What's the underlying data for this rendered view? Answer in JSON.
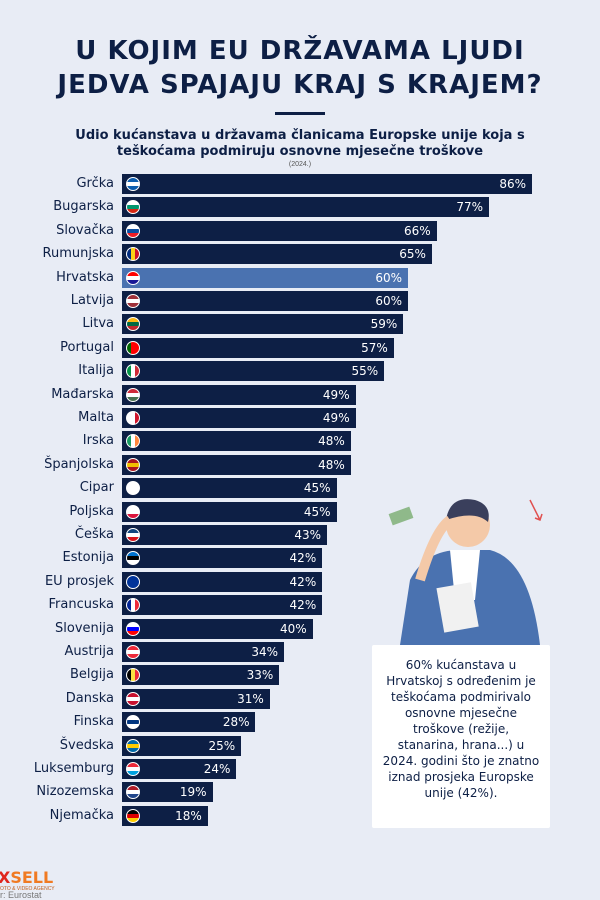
{
  "header": {
    "title_line1": "U KOJIM EU DRŽAVAMA LJUDI",
    "title_line2": "JEDVA SPAJAJU KRAJ S KRAJEM?",
    "subtitle": "Udio kućanstava u državama članicama Europske unije koja s teškoćama podmiruju osnovne mjesečne troškove",
    "year": "(2024.)"
  },
  "chart_data": {
    "type": "bar",
    "orientation": "horizontal",
    "title": "Udio kućanstava u državama članicama Europske unije koja s teškoćama podmiruju osnovne mjesečne troškove",
    "xlim": [
      0,
      100
    ],
    "unit": "%",
    "highlight": "Hrvatska",
    "bar_color": "#0d1f45",
    "highlight_color": "#4a72b0",
    "categories": [
      "Grčka",
      "Bugarska",
      "Slovačka",
      "Rumunjska",
      "Hrvatska",
      "Latvija",
      "Litva",
      "Portugal",
      "Italija",
      "Mađarska",
      "Malta",
      "Irska",
      "Španjolska",
      "Cipar",
      "Poljska",
      "Češka",
      "Estonija",
      "EU prosjek",
      "Francuska",
      "Slovenija",
      "Austrija",
      "Belgija",
      "Danska",
      "Finska",
      "Švedska",
      "Luksemburg",
      "Nizozemska",
      "Njemačka"
    ],
    "values": [
      86,
      77,
      66,
      65,
      60,
      60,
      59,
      57,
      55,
      49,
      49,
      48,
      48,
      45,
      45,
      43,
      42,
      42,
      42,
      40,
      34,
      33,
      31,
      28,
      25,
      24,
      19,
      18
    ],
    "labels": [
      "86%",
      "77%",
      "66%",
      "65%",
      "60%",
      "60%",
      "59%",
      "57%",
      "55%",
      "49%",
      "49%",
      "48%",
      "48%",
      "45%",
      "45%",
      "43%",
      "42%",
      "42%",
      "42%",
      "40%",
      "34%",
      "33%",
      "31%",
      "28%",
      "25%",
      "24%",
      "19%",
      "18%"
    ]
  },
  "flags": [
    [
      "#0d5eaf",
      "#fff",
      "#0d5eaf"
    ],
    [
      "#fff",
      "#00966e",
      "#d62612"
    ],
    [
      "#fff",
      "#0b4ea2",
      "#ee1c25"
    ],
    [
      "#002b7f|",
      "#fcd116|",
      "#ce1126|"
    ],
    [
      "#ff0000",
      "#fff",
      "#171796"
    ],
    [
      "#9e3039",
      "#fff",
      "#9e3039"
    ],
    [
      "#fdb913",
      "#006a44",
      "#c1272d"
    ],
    [
      "#006600|",
      "#ff0000|",
      "#ff0000|"
    ],
    [
      "#009246|",
      "#fff|",
      "#ce2b37|"
    ],
    [
      "#ce2939",
      "#fff",
      "#477050"
    ],
    [
      "#fff|",
      "#fff|",
      "#cf142b|"
    ],
    [
      "#169b62|",
      "#fff|",
      "#ff883e|"
    ],
    [
      "#aa151b",
      "#f1bf00",
      "#aa151b"
    ],
    [
      "#fff",
      "#fff",
      "#fff"
    ],
    [
      "#fff",
      "#fff",
      "#dc143c"
    ],
    [
      "#11457e",
      "#fff",
      "#d7141a"
    ],
    [
      "#0072ce",
      "#000",
      "#fff"
    ],
    [
      "#003399",
      "#003399",
      "#003399"
    ],
    [
      "#002395|",
      "#fff|",
      "#ed2939|"
    ],
    [
      "#fff",
      "#0000ff",
      "#ff0000"
    ],
    [
      "#ed2939",
      "#fff",
      "#ed2939"
    ],
    [
      "#000|",
      "#fae042|",
      "#ed2939|"
    ],
    [
      "#c8102e",
      "#fff",
      "#c8102e"
    ],
    [
      "#fff",
      "#003580",
      "#fff"
    ],
    [
      "#006aa7",
      "#fecc00",
      "#006aa7"
    ],
    [
      "#ed2939",
      "#fff",
      "#00a1de"
    ],
    [
      "#ae1c28",
      "#fff",
      "#21468b"
    ],
    [
      "#000",
      "#dd0000",
      "#ffce00"
    ]
  ],
  "note": "60% kućanstava u Hrvatskoj s određenim je teškoćama podmirivalo osnovne mjesečne troškove (režije, stanarina, hrana...) u 2024. godini što je znatno iznad prosjeka Europske unije (42%).",
  "footer": {
    "logo": "XSELL",
    "logo_prefix": "X",
    "logo_rest": "SELL",
    "agency": "OTO & VIDEO AGENCY",
    "source": "r: Eurostat"
  }
}
